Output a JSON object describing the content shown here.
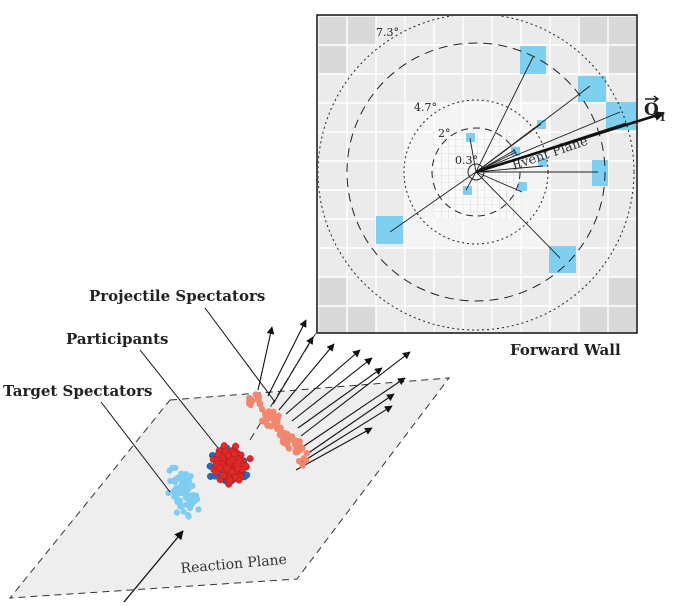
{
  "labels": {
    "projectile_spectators": "Projectile Spectators",
    "participants": "Participants",
    "target_spectators": "Target Spectators",
    "forward_wall": "Forward Wall",
    "reaction_plane": "Reaction Plane",
    "event_plane": "Event Plane",
    "q_vector": "Q",
    "q_subscript": "1"
  },
  "angles": {
    "outer": "7.3°",
    "mid": "4.7°",
    "inner": "2°",
    "center": "0.3°"
  },
  "colors": {
    "hit_module": "#7fcff0",
    "target_spectator": "#80cdf2",
    "participant_red": "#e02a2a",
    "participant_blue": "#2b69b6",
    "projectile_spectator": "#f28770",
    "plane_fill": "#eeeeee",
    "wall_fill": "#ebebeb",
    "wall_corner": "#d9d9d9"
  }
}
